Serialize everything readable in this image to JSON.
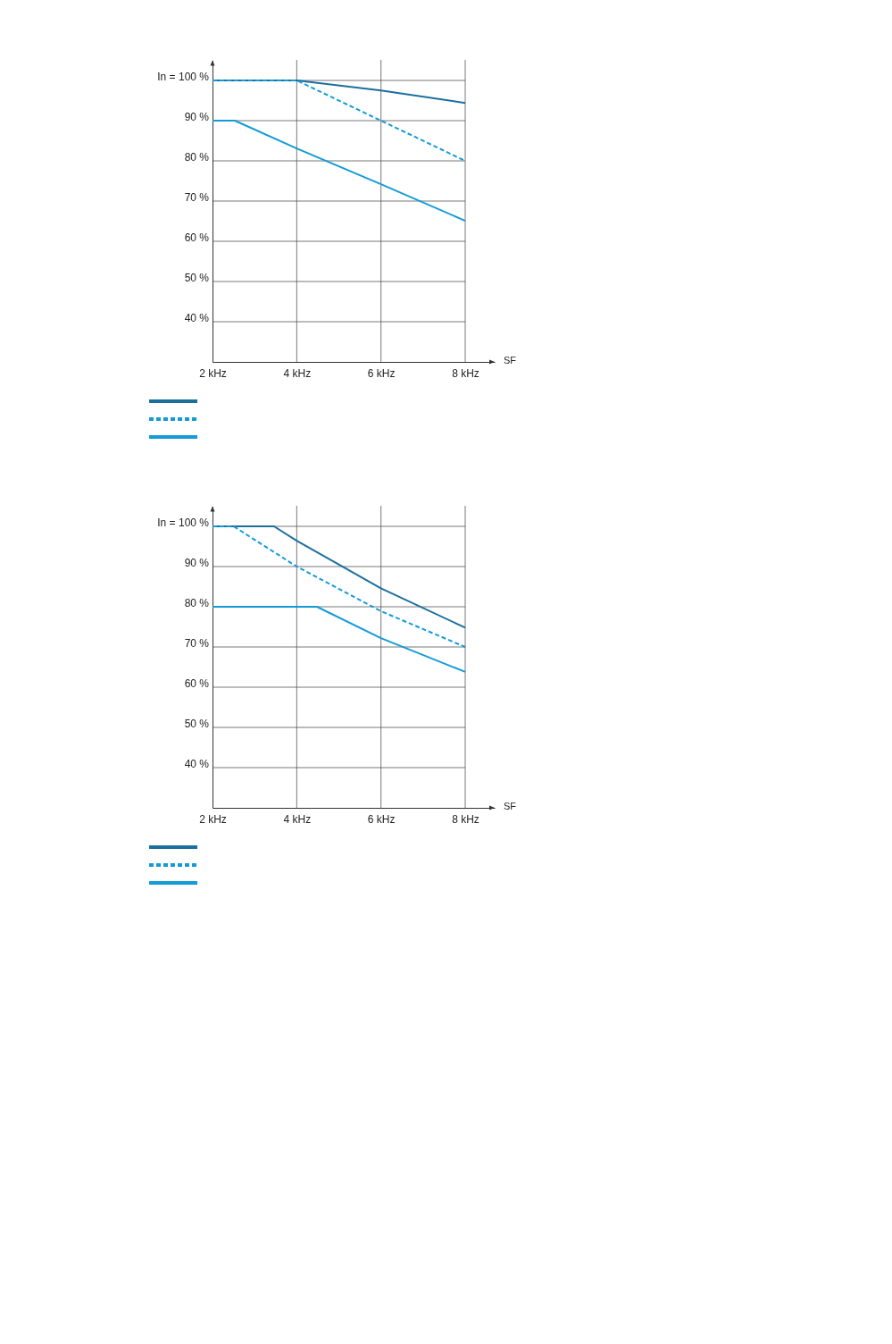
{
  "chart_data": [
    {
      "type": "line",
      "xlabel": "SF",
      "xlim": [
        2,
        8.7
      ],
      "ylim": [
        30,
        105
      ],
      "xticks": [
        {
          "value": 2,
          "label": "2 kHz"
        },
        {
          "value": 4,
          "label": "4 kHz"
        },
        {
          "value": 6,
          "label": "6 kHz"
        },
        {
          "value": 8,
          "label": "8 kHz"
        }
      ],
      "yticks": [
        {
          "value": 40,
          "label": "40 %"
        },
        {
          "value": 50,
          "label": "50 %"
        },
        {
          "value": 60,
          "label": "60 %"
        },
        {
          "value": 70,
          "label": "70 %"
        },
        {
          "value": 80,
          "label": "80 %"
        },
        {
          "value": 90,
          "label": "90 %"
        },
        {
          "value": 100,
          "label": "In = 100 %"
        }
      ],
      "grid": true,
      "marker": "none",
      "series": [
        {
          "color": "#1b6f9f",
          "line_style": "solid",
          "x": [
            2,
            4,
            6,
            8
          ],
          "values": [
            100,
            100,
            97.5,
            94.4
          ]
        },
        {
          "color": "#149bd7",
          "line_style": "dashed",
          "x": [
            2,
            4,
            6,
            8
          ],
          "values": [
            100,
            100,
            90,
            80
          ]
        },
        {
          "color": "#149bd7",
          "line_style": "solid",
          "x": [
            2,
            2.53,
            4,
            6,
            8
          ],
          "values": [
            90,
            90,
            83.1,
            74.2,
            65.1
          ]
        }
      ]
    },
    {
      "type": "line",
      "xlabel": "SF",
      "xlim": [
        2,
        8.7
      ],
      "ylim": [
        30,
        105
      ],
      "xticks": [
        {
          "value": 2,
          "label": "2 kHz"
        },
        {
          "value": 4,
          "label": "4 kHz"
        },
        {
          "value": 6,
          "label": "6 kHz"
        },
        {
          "value": 8,
          "label": "8 kHz"
        }
      ],
      "yticks": [
        {
          "value": 40,
          "label": "40 %"
        },
        {
          "value": 50,
          "label": "50 %"
        },
        {
          "value": 60,
          "label": "60 %"
        },
        {
          "value": 70,
          "label": "70 %"
        },
        {
          "value": 80,
          "label": "80 %"
        },
        {
          "value": 90,
          "label": "90 %"
        },
        {
          "value": 100,
          "label": "In = 100 %"
        }
      ],
      "grid": true,
      "marker": "none",
      "series": [
        {
          "color": "#1b6f9f",
          "line_style": "solid",
          "x": [
            2,
            3.46,
            4,
            6,
            8
          ],
          "values": [
            100,
            100,
            96.4,
            84.6,
            74.8
          ]
        },
        {
          "color": "#149bd7",
          "line_style": "dashed",
          "x": [
            2,
            2.5,
            4,
            6,
            8
          ],
          "values": [
            100,
            100,
            90,
            78.9,
            70
          ]
        },
        {
          "color": "#149bd7",
          "line_style": "solid",
          "x": [
            2,
            4.48,
            6,
            8
          ],
          "values": [
            80,
            80,
            72.2,
            63.8
          ]
        }
      ]
    }
  ]
}
